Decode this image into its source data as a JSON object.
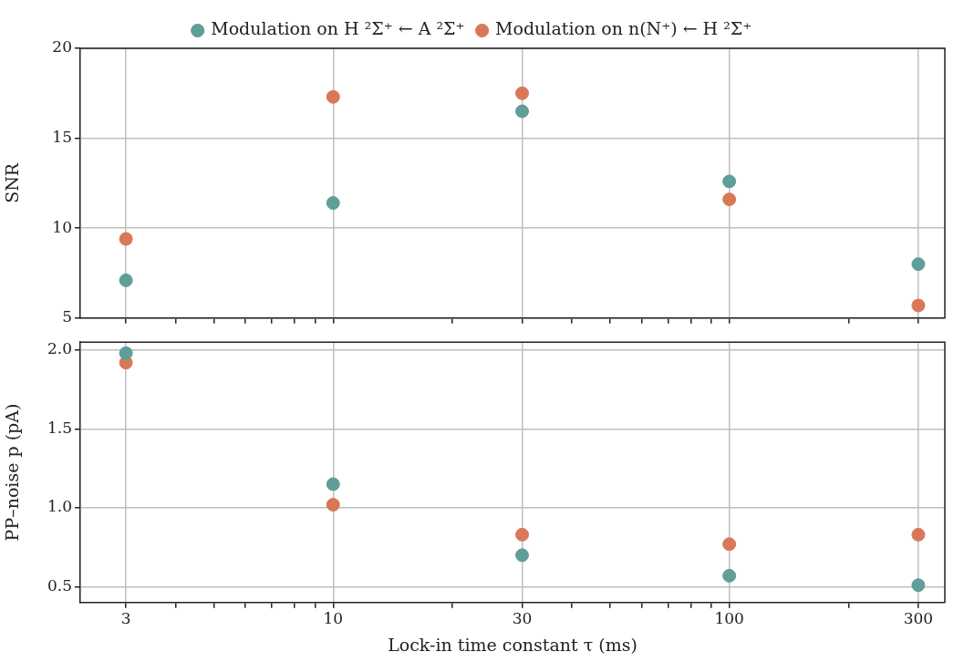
{
  "chart_data": [
    {
      "type": "scatter",
      "ylabel": "SNR",
      "x": [
        3,
        10,
        30,
        100,
        300
      ],
      "xlim": [
        2.3,
        350
      ],
      "xticks": [
        3,
        {
          "value": 4,
          "label": null
        },
        {
          "value": 5,
          "label": null
        },
        {
          "value": 6,
          "label": null
        },
        {
          "value": 7,
          "label": null
        },
        {
          "value": 8,
          "label": null
        },
        {
          "value": 9,
          "label": null
        },
        10,
        {
          "value": 20,
          "label": null
        },
        30,
        {
          "value": 40,
          "label": null
        },
        {
          "value": 50,
          "label": null
        },
        {
          "value": 60,
          "label": null
        },
        {
          "value": 70,
          "label": null
        },
        {
          "value": 80,
          "label": null
        },
        {
          "value": 90,
          "label": null
        },
        100,
        {
          "value": 200,
          "label": null
        },
        300
      ],
      "ylim": [
        5,
        20
      ],
      "yticks": [
        5,
        10,
        15,
        20
      ],
      "log": "x",
      "grid": true,
      "marker": "circle",
      "legend": "top",
      "tick_labels": "y",
      "series": [
        {
          "name": "Modulation on H ²Σ⁺ ← A ²Σ⁺",
          "color": "#5f9e99",
          "values": [
            7.1,
            11.4,
            16.5,
            12.6,
            8.0
          ]
        },
        {
          "name": "Modulation on n(N⁺) ← H ²Σ⁺",
          "color": "#d97857",
          "values": [
            9.4,
            17.3,
            17.5,
            11.6,
            5.7
          ]
        }
      ]
    },
    {
      "type": "scatter",
      "xlabel": "Lock-in time constant τ (ms)",
      "ylabel": "PP–noise p (pA)",
      "x": [
        3,
        10,
        30,
        100,
        300
      ],
      "xlim": [
        2.3,
        350
      ],
      "xticks": [
        3,
        {
          "value": 4,
          "label": null
        },
        {
          "value": 5,
          "label": null
        },
        {
          "value": 6,
          "label": null
        },
        {
          "value": 7,
          "label": null
        },
        {
          "value": 8,
          "label": null
        },
        {
          "value": 9,
          "label": null
        },
        10,
        {
          "value": 20,
          "label": null
        },
        30,
        {
          "value": 40,
          "label": null
        },
        {
          "value": 50,
          "label": null
        },
        {
          "value": 60,
          "label": null
        },
        {
          "value": 70,
          "label": null
        },
        {
          "value": 80,
          "label": null
        },
        {
          "value": 90,
          "label": null
        },
        100,
        {
          "value": 200,
          "label": null
        },
        300
      ],
      "ylim": [
        0.4,
        2.05
      ],
      "yticks": [
        {
          "value": 0.5,
          "label": "0.5"
        },
        {
          "value": 1,
          "label": "1.0"
        },
        {
          "value": 1.5,
          "label": "1.5"
        },
        {
          "value": 2,
          "label": "2.0"
        }
      ],
      "log": "x",
      "grid": true,
      "marker": "circle",
      "series": [
        {
          "color": "#5f9e99",
          "values": [
            1.98,
            1.15,
            0.7,
            0.57,
            0.51
          ]
        },
        {
          "color": "#d97857",
          "values": [
            1.92,
            1.02,
            0.83,
            0.77,
            0.83
          ]
        }
      ]
    }
  ]
}
